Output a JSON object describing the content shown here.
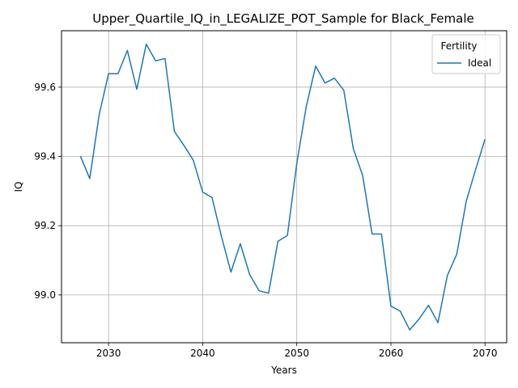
{
  "chart_data": {
    "type": "line",
    "title": "Upper_Quartile_IQ_in_LEGALIZE_POT_Sample for Black_Female",
    "xlabel": "Years",
    "ylabel": "IQ",
    "xlim": [
      2025,
      2072.3
    ],
    "ylim": [
      98.862,
      99.763
    ],
    "xticks": [
      2030,
      2040,
      2050,
      2060,
      2070
    ],
    "yticks": [
      99.0,
      99.2,
      99.4,
      99.6
    ],
    "xtick_labels": [
      "2030",
      "2040",
      "2050",
      "2060",
      "2070"
    ],
    "ytick_labels": [
      "99.0",
      "99.2",
      "99.4",
      "99.6"
    ],
    "grid": true,
    "legend": {
      "title": "Fertility",
      "placement": "top-right"
    },
    "series": [
      {
        "name": "Ideal",
        "color": "#1f77b4",
        "x": [
          2027,
          2028,
          2029,
          2030,
          2031,
          2032,
          2033,
          2034,
          2035,
          2036,
          2037,
          2038,
          2039,
          2040,
          2041,
          2042,
          2043,
          2044,
          2045,
          2046,
          2047,
          2048,
          2049,
          2050,
          2051,
          2052,
          2053,
          2054,
          2055,
          2056,
          2057,
          2058,
          2059,
          2060,
          2061,
          2062,
          2063,
          2064,
          2065,
          2066,
          2067,
          2068,
          2069,
          2070
        ],
        "y": [
          99.401,
          99.336,
          99.52,
          99.639,
          99.639,
          99.706,
          99.594,
          99.724,
          99.676,
          99.683,
          99.472,
          99.432,
          99.389,
          99.297,
          99.281,
          99.168,
          99.066,
          99.148,
          99.058,
          99.012,
          99.005,
          99.155,
          99.172,
          99.38,
          99.543,
          99.661,
          99.612,
          99.626,
          99.591,
          99.423,
          99.345,
          99.176,
          99.176,
          98.968,
          98.953,
          98.899,
          98.931,
          98.97,
          98.92,
          99.056,
          99.118,
          99.27,
          99.362,
          99.45
        ]
      }
    ]
  }
}
